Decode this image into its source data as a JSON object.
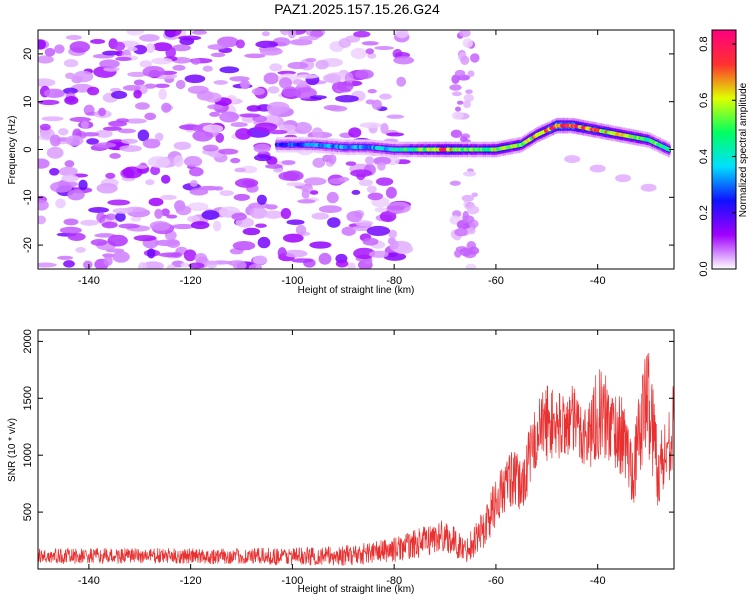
{
  "figure_title": "PAZ1.2025.157.15.26.G24",
  "chart_data": [
    {
      "type": "heatmap",
      "xlabel": "Height of straight line (km)",
      "ylabel": "Frequency (Hz)",
      "xlim": [
        -150,
        -25
      ],
      "ylim": [
        -25,
        25
      ],
      "xticks": [
        -140,
        -120,
        -100,
        -80,
        -60,
        -40
      ],
      "yticks": [
        -20,
        -10,
        0,
        10,
        20
      ],
      "colorbar": {
        "label": "Normalized spectral amplitude",
        "range": [
          0,
          0.85
        ],
        "ticks": [
          "0.0",
          "0.2",
          "0.4",
          "0.6",
          "0.8"
        ],
        "tick_values": [
          0,
          0.2,
          0.4,
          0.6,
          0.8
        ],
        "colors": [
          "#ffffff",
          "#a000ff",
          "#1010ff",
          "#00e0ff",
          "#00ff60",
          "#e0ff00",
          "#ff3030",
          "#ff0080"
        ]
      },
      "noise_region": {
        "x_range": [
          -150,
          -78
        ],
        "level": 0.12
      },
      "weak_column": {
        "x_range": [
          -68,
          -64
        ],
        "level": 0.1
      },
      "ridge": {
        "heights_km": [
          -103,
          -96,
          -90,
          -85,
          -80,
          -75,
          -70,
          -65,
          -60,
          -55,
          -52,
          -48,
          -45,
          -40,
          -35,
          -30,
          -26
        ],
        "frequency_hz": [
          1,
          1,
          0.5,
          0.5,
          0,
          0,
          0,
          0,
          0,
          1,
          3,
          5,
          5,
          4,
          3,
          2,
          0
        ],
        "amplitude": [
          0.28,
          0.32,
          0.35,
          0.36,
          0.42,
          0.55,
          0.75,
          0.55,
          0.6,
          0.6,
          0.65,
          0.82,
          0.78,
          0.7,
          0.62,
          0.55,
          0.5
        ]
      },
      "secondary_branch": {
        "heights_km": [
          -45,
          -40,
          -35,
          -30
        ],
        "frequency_hz": [
          -2,
          -4,
          -6,
          -8
        ],
        "amplitude": 0.1
      }
    },
    {
      "type": "line",
      "xlabel": "Height of straight line (km)",
      "ylabel": "SNR (10 * v/v)",
      "xlim": [
        -150,
        -25
      ],
      "ylim": [
        0,
        2100
      ],
      "xticks": [
        -140,
        -120,
        -100,
        -80,
        -60,
        -40
      ],
      "yticks": [
        500,
        1000,
        1500,
        2000
      ],
      "line_color": "#e83030",
      "envelope": {
        "heights_km": [
          -150,
          -130,
          -110,
          -90,
          -80,
          -75,
          -70,
          -66,
          -62,
          -60,
          -57,
          -55,
          -52,
          -50,
          -48,
          -45,
          -42,
          -40,
          -38,
          -35,
          -33,
          -31,
          -30,
          -28,
          -26,
          -25
        ],
        "snr_mean": [
          110,
          115,
          110,
          115,
          170,
          230,
          300,
          160,
          380,
          600,
          800,
          720,
          1180,
          1300,
          1250,
          1300,
          1150,
          1380,
          1300,
          1150,
          850,
          1400,
          1500,
          850,
          1100,
          1300
        ],
        "snr_spread": [
          70,
          70,
          70,
          90,
          110,
          130,
          150,
          110,
          200,
          220,
          260,
          260,
          300,
          350,
          300,
          320,
          300,
          420,
          380,
          350,
          300,
          450,
          520,
          350,
          350,
          350
        ]
      }
    }
  ]
}
